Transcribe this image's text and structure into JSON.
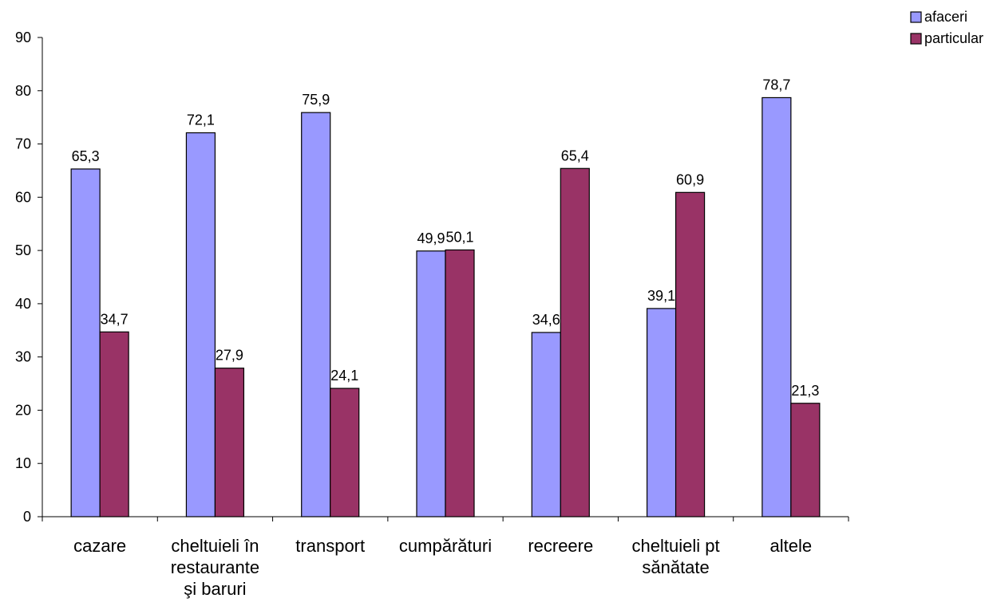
{
  "chart_data": {
    "type": "bar",
    "categories": [
      [
        "cazare"
      ],
      [
        "cheltuieli în",
        "restaurante",
        "şi baruri"
      ],
      [
        "transport"
      ],
      [
        "cumpărături"
      ],
      [
        "recreere"
      ],
      [
        "cheltuieli pt",
        "sănătate"
      ],
      [
        "altele"
      ]
    ],
    "series": [
      {
        "name": "afaceri",
        "color": "#9999ff",
        "values": [
          65.3,
          72.1,
          75.9,
          49.9,
          34.6,
          39.1,
          78.7
        ],
        "labels": [
          "65,3",
          "72,1",
          "75,9",
          "49,9",
          "34,6",
          "39,1",
          "78,7"
        ]
      },
      {
        "name": "particular",
        "color": "#993366",
        "values": [
          34.7,
          27.9,
          24.1,
          50.1,
          65.4,
          60.9,
          21.3
        ],
        "labels": [
          "34,7",
          "27,9",
          "24,1",
          "50,1",
          "65,4",
          "60,9",
          "21,3"
        ]
      }
    ],
    "ylim": [
      0,
      90
    ],
    "yticks": [
      0,
      10,
      20,
      30,
      40,
      50,
      60,
      70,
      80,
      90
    ],
    "grid": false,
    "legend_position": "top-right"
  }
}
